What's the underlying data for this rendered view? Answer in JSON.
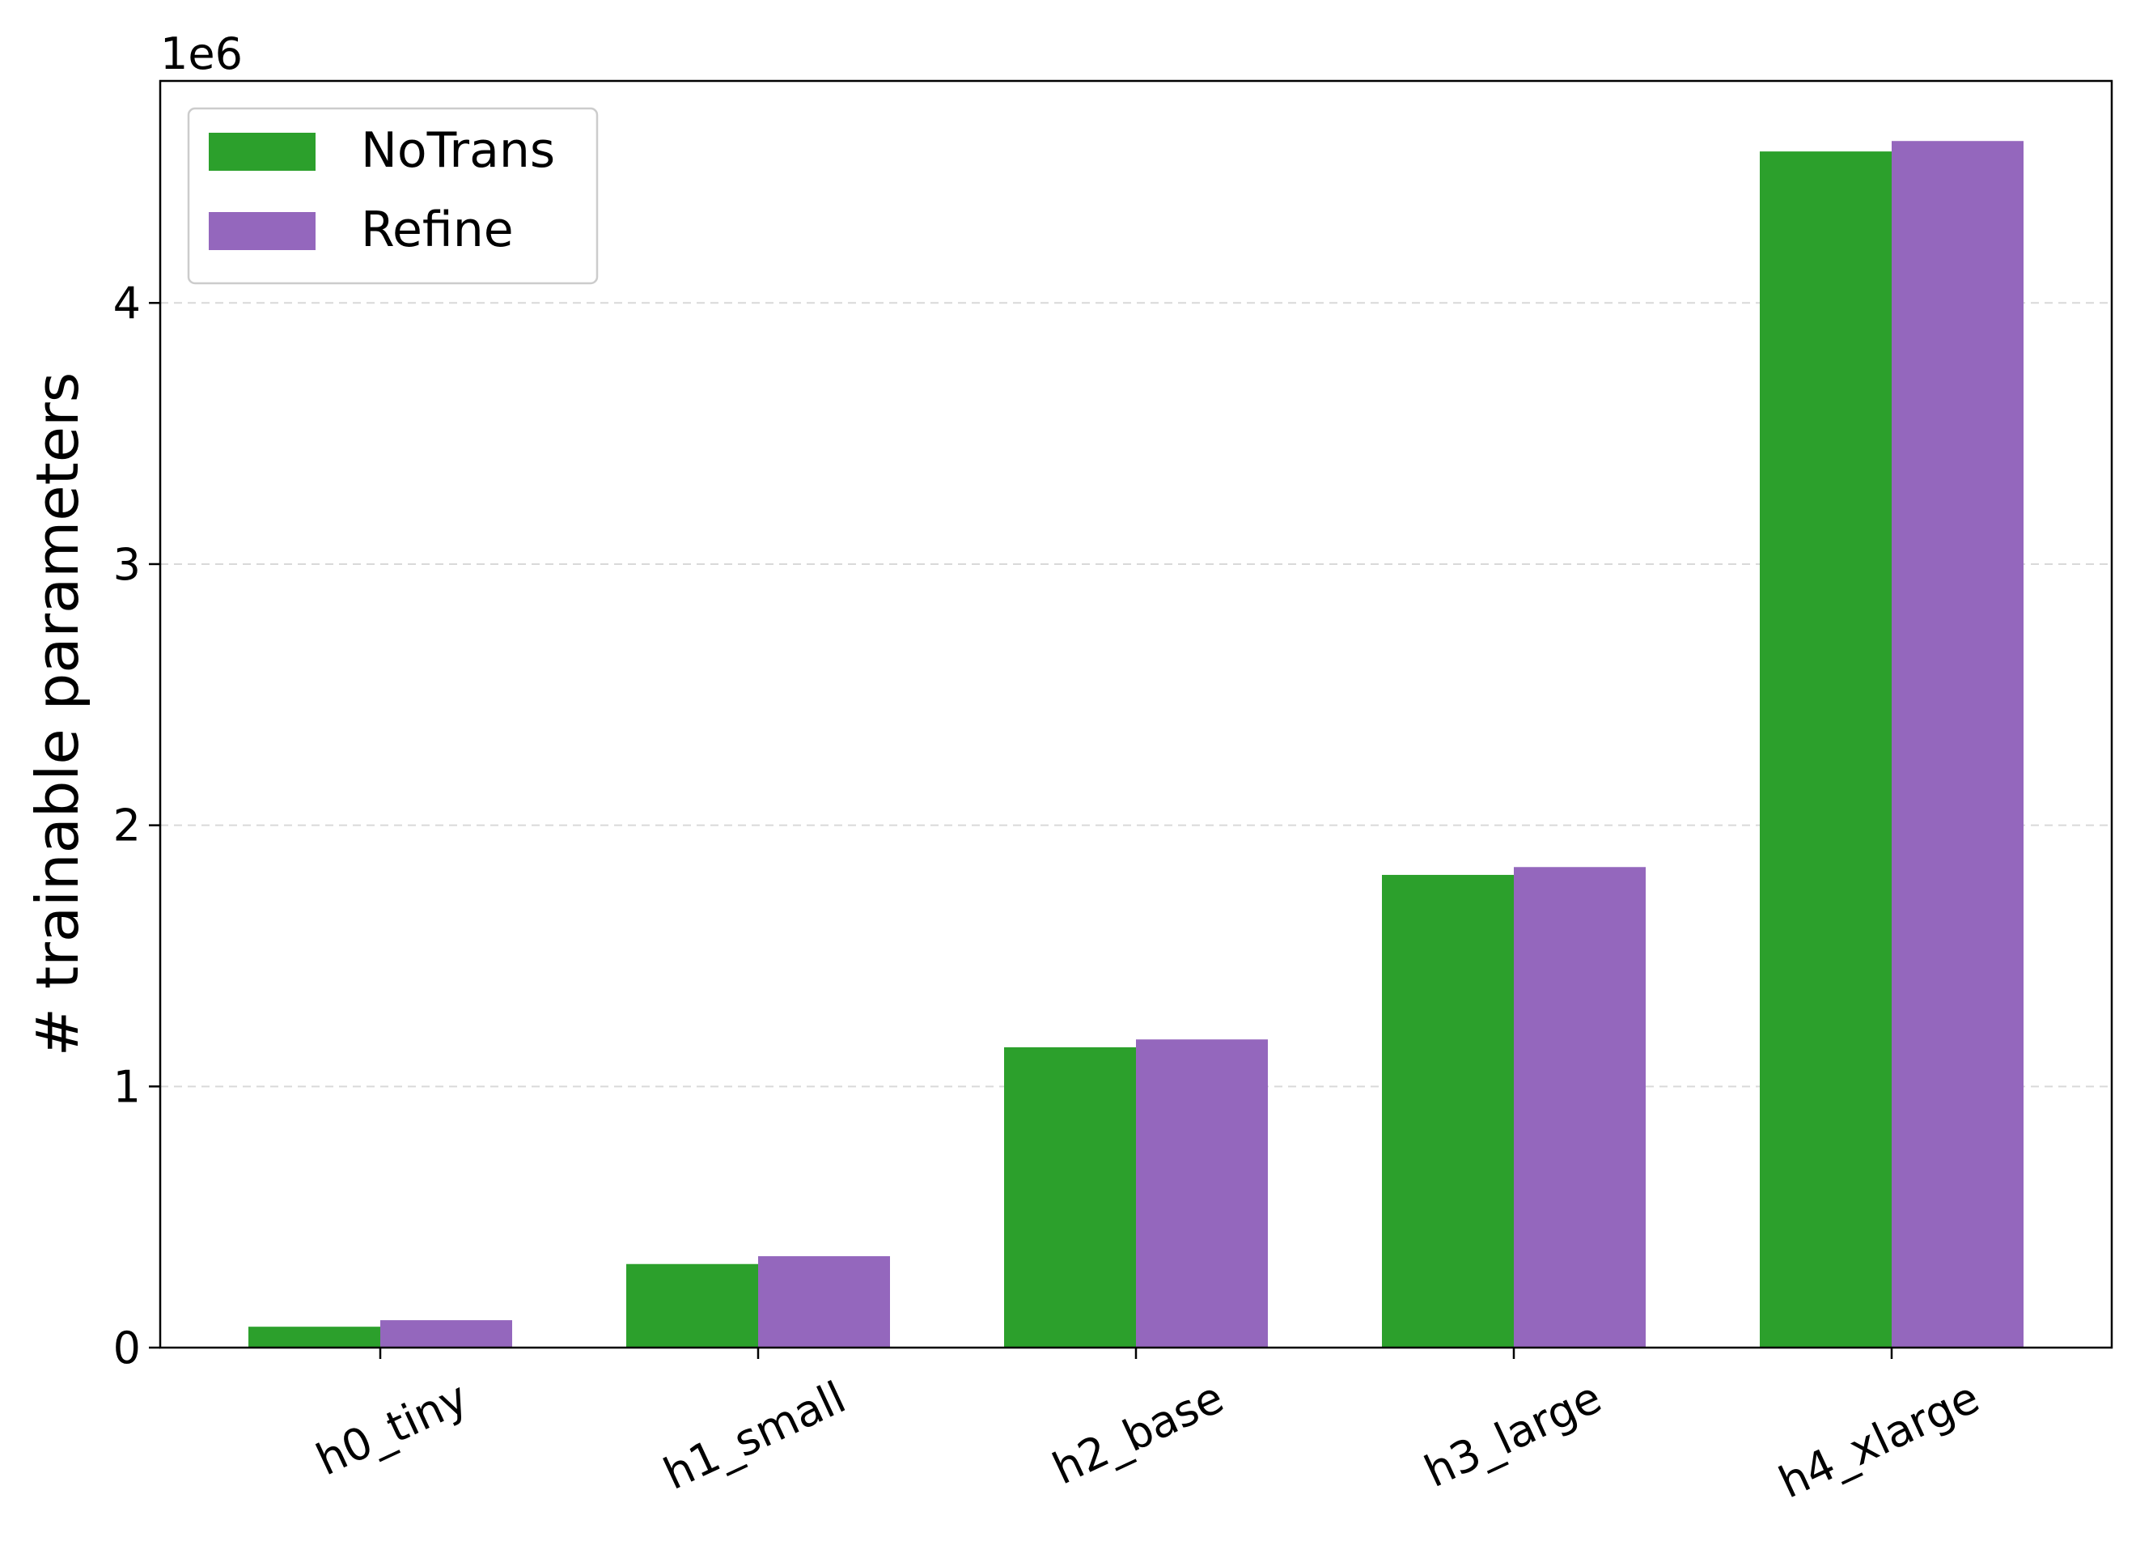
{
  "chart_data": {
    "type": "bar",
    "categories": [
      "h0_tiny",
      "h1_small",
      "h2_base",
      "h3_large",
      "h4_xlarge"
    ],
    "series": [
      {
        "name": "NoTrans",
        "color": "#2ca02c",
        "values": [
          80000,
          320000,
          1150000,
          1810000,
          4580000
        ]
      },
      {
        "name": "Refine",
        "color": "#9467bd",
        "values": [
          105000,
          350000,
          1180000,
          1840000,
          4620000
        ]
      }
    ],
    "ylabel": "# trainable parameters",
    "xlabel": "",
    "y_offset_text": "1e6",
    "ylim": [
      0,
      4850000
    ],
    "yticks": [
      0,
      1000000,
      2000000,
      3000000,
      4000000
    ],
    "ytick_labels": [
      "0",
      "1",
      "2",
      "3",
      "4"
    ],
    "grid": "y dashed",
    "legend_position": "top-left"
  }
}
